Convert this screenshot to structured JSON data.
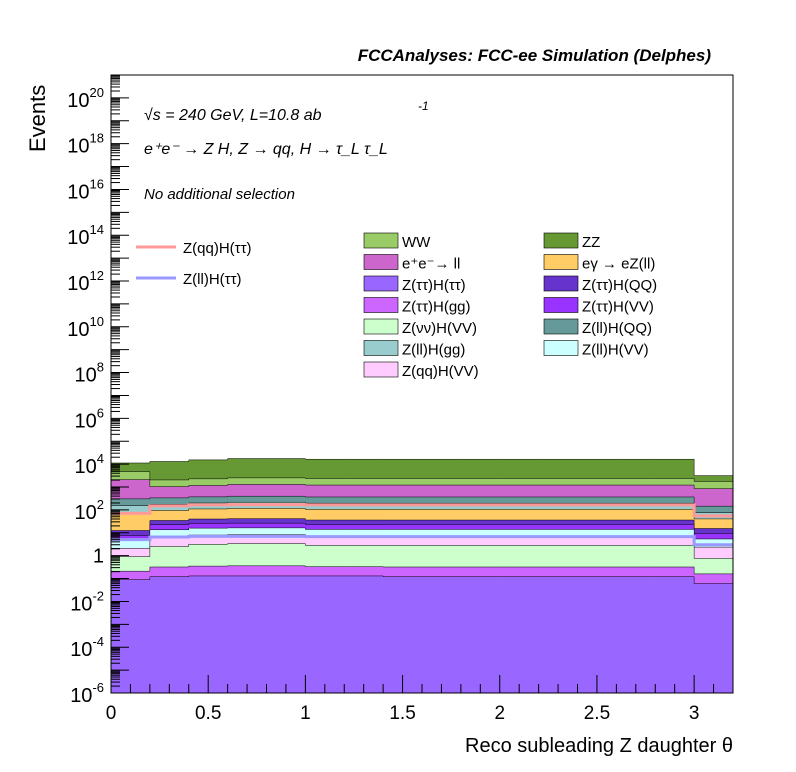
{
  "chart_data": {
    "type": "area",
    "title": "FCCAnalyses: FCC-ee Simulation (Delphes)",
    "xlabel": "Reco subleading Z daughter θ",
    "ylabel": "Events",
    "log_y": true,
    "xlim": [
      0,
      3.2
    ],
    "ylim": [
      1e-06,
      1e+21
    ],
    "x_ticks": [
      "0",
      "0.5",
      "1",
      "1.5",
      "2",
      "2.5",
      "3"
    ],
    "y_ticks": [
      {
        "base": "10",
        "exp": "-6"
      },
      {
        "base": "10",
        "exp": "-4"
      },
      {
        "base": "10",
        "exp": "-2"
      },
      {
        "base": "1",
        "exp": ""
      },
      {
        "base": "10",
        "exp": "2"
      },
      {
        "base": "10",
        "exp": "4"
      },
      {
        "base": "10",
        "exp": "6"
      },
      {
        "base": "10",
        "exp": "8"
      },
      {
        "base": "10",
        "exp": "10"
      },
      {
        "base": "10",
        "exp": "12"
      },
      {
        "base": "10",
        "exp": "14"
      },
      {
        "base": "10",
        "exp": "16"
      },
      {
        "base": "10",
        "exp": "18"
      },
      {
        "base": "10",
        "exp": "20"
      }
    ],
    "annotations": {
      "energy_prefix": "√s",
      "energy_rest": " = 240 GeV, L=10.8 ab",
      "energy_exp": "-1",
      "process": "e⁺e⁻ → Z H, Z → qq, H → τ_L τ_L",
      "selection": "No additional selection"
    },
    "bin_edges": [
      0,
      0.2,
      0.4,
      0.6,
      0.8,
      1.0,
      1.2,
      1.4,
      1.6,
      1.8,
      2.0,
      2.2,
      2.4,
      2.6,
      2.8,
      3.0,
      3.2
    ],
    "stack_order_bottom_to_top": "cumulative totals per bin",
    "stack": [
      {
        "name": "Z(ττ)H(ττ)",
        "color": "#9966ff",
        "values": [
          0.09,
          0.12,
          0.13,
          0.13,
          0.13,
          0.13,
          0.13,
          0.12,
          0.12,
          0.12,
          0.12,
          0.12,
          0.12,
          0.12,
          0.12,
          0.06
        ]
      },
      {
        "name": "Z(ττ)H(gg)",
        "color": "#cc66ff",
        "values": [
          0.12,
          0.2,
          0.22,
          0.23,
          0.23,
          0.2,
          0.2,
          0.2,
          0.2,
          0.2,
          0.2,
          0.2,
          0.2,
          0.2,
          0.2,
          0.1
        ]
      },
      {
        "name": "Z(νν)H(VV)",
        "color": "#ccffcc",
        "values": [
          0.7,
          2.2,
          2.8,
          3.0,
          3.0,
          2.5,
          2.5,
          2.5,
          2.5,
          2.5,
          2.5,
          2.5,
          2.5,
          2.5,
          2.5,
          0.6
        ]
      },
      {
        "name": "Z(qq)H(VV)",
        "color": "#ffccff",
        "values": [
          1.2,
          4.0,
          4.8,
          5.0,
          5.0,
          4.2,
          4.2,
          4.2,
          4.2,
          4.2,
          4.2,
          4.2,
          4.2,
          4.2,
          4.2,
          1.6
        ]
      },
      {
        "name": "Z(ll)H(VV)",
        "color": "#ccffff",
        "values": [
          2.5,
          7.0,
          8.0,
          8.0,
          8.0,
          7.0,
          7.0,
          7.0,
          7.0,
          7.0,
          7.0,
          7.0,
          7.0,
          7.0,
          7.0,
          3.0
        ]
      },
      {
        "name": "Z(ττ)H(VV)",
        "color": "#9933ff",
        "values": [
          3.0,
          9.0,
          10.0,
          10.0,
          10.0,
          9.0,
          9.0,
          9.0,
          9.0,
          9.0,
          9.0,
          9.0,
          9.0,
          9.0,
          9.0,
          4.0
        ]
      },
      {
        "name": "Z(ττ)H(QQ)",
        "color": "#6633cc",
        "values": [
          5.0,
          12.0,
          14.0,
          15.0,
          15.0,
          13.0,
          13.0,
          13.0,
          13.0,
          13.0,
          13.0,
          13.0,
          13.0,
          13.0,
          13.0,
          6.0
        ]
      },
      {
        "name": "eγ → eZ(ll)",
        "color": "#ffcc66",
        "values": [
          60,
          60,
          70,
          75,
          75,
          70,
          70,
          70,
          70,
          70,
          70,
          70,
          70,
          70,
          70,
          25
        ]
      },
      {
        "name": "Z(ll)H(gg)",
        "color": "#99cccc",
        "values": [
          80,
          80,
          90,
          100,
          100,
          90,
          90,
          90,
          90,
          90,
          90,
          90,
          90,
          90,
          90,
          35
        ]
      },
      {
        "name": "Z(ll)H(QQ)",
        "color": "#669999",
        "values": [
          150,
          160,
          170,
          180,
          180,
          170,
          170,
          170,
          170,
          170,
          170,
          170,
          170,
          170,
          170,
          70
        ]
      },
      {
        "name": "e⁺e⁻→ ll",
        "color": "#cc66cc",
        "values": [
          1800,
          700,
          800,
          900,
          900,
          850,
          850,
          850,
          850,
          850,
          850,
          850,
          850,
          850,
          850,
          700
        ]
      },
      {
        "name": "WW",
        "color": "#99cc66",
        "values": [
          2600,
          1000,
          1100,
          1200,
          1200,
          1150,
          1150,
          1150,
          1150,
          1150,
          1150,
          1150,
          1150,
          1150,
          1150,
          900
        ]
      },
      {
        "name": "ZZ",
        "color": "#669933",
        "values": [
          6500,
          11000,
          13000,
          15000,
          15000,
          14000,
          14000,
          14000,
          14000,
          14000,
          14000,
          14000,
          14000,
          14000,
          14000,
          1400
        ]
      }
    ],
    "signal_lines": [
      {
        "name": "Z(qq)H(ττ)",
        "color": "#ff9999",
        "values": [
          70,
          150,
          165,
          170,
          170,
          165,
          165,
          165,
          165,
          165,
          165,
          165,
          165,
          165,
          165,
          55
        ]
      },
      {
        "name": "Z(ll)H(ττ)",
        "color": "#9999ff",
        "values": [
          5.0,
          6.5,
          7.0,
          7.0,
          7.0,
          6.8,
          6.8,
          6.8,
          6.8,
          6.8,
          6.8,
          6.8,
          6.8,
          6.8,
          6.8,
          3.0
        ]
      }
    ],
    "legend_signal": [
      {
        "label": "Z(qq)H(ττ)",
        "color": "#ff9999"
      },
      {
        "label": "Z(ll)H(ττ)",
        "color": "#9999ff"
      }
    ],
    "legend_col1": [
      {
        "label": "WW",
        "color": "#99cc66"
      },
      {
        "label": "e⁺e⁻→ ll",
        "color": "#cc66cc"
      },
      {
        "label": "Z(ττ)H(ττ)",
        "color": "#9966ff"
      },
      {
        "label": "Z(ττ)H(gg)",
        "color": "#cc66ff"
      },
      {
        "label": "Z(νν)H(VV)",
        "color": "#ccffcc"
      },
      {
        "label": "Z(ll)H(gg)",
        "color": "#99cccc"
      },
      {
        "label": "Z(qq)H(VV)",
        "color": "#ffccff"
      }
    ],
    "legend_col2": [
      {
        "label": "ZZ",
        "color": "#669933"
      },
      {
        "label": "eγ → eZ(ll)",
        "color": "#ffcc66"
      },
      {
        "label": "Z(ττ)H(QQ)",
        "color": "#6633cc"
      },
      {
        "label": "Z(ττ)H(VV)",
        "color": "#9933ff"
      },
      {
        "label": "Z(ll)H(QQ)",
        "color": "#669999"
      },
      {
        "label": "Z(ll)H(VV)",
        "color": "#ccffff"
      }
    ]
  }
}
